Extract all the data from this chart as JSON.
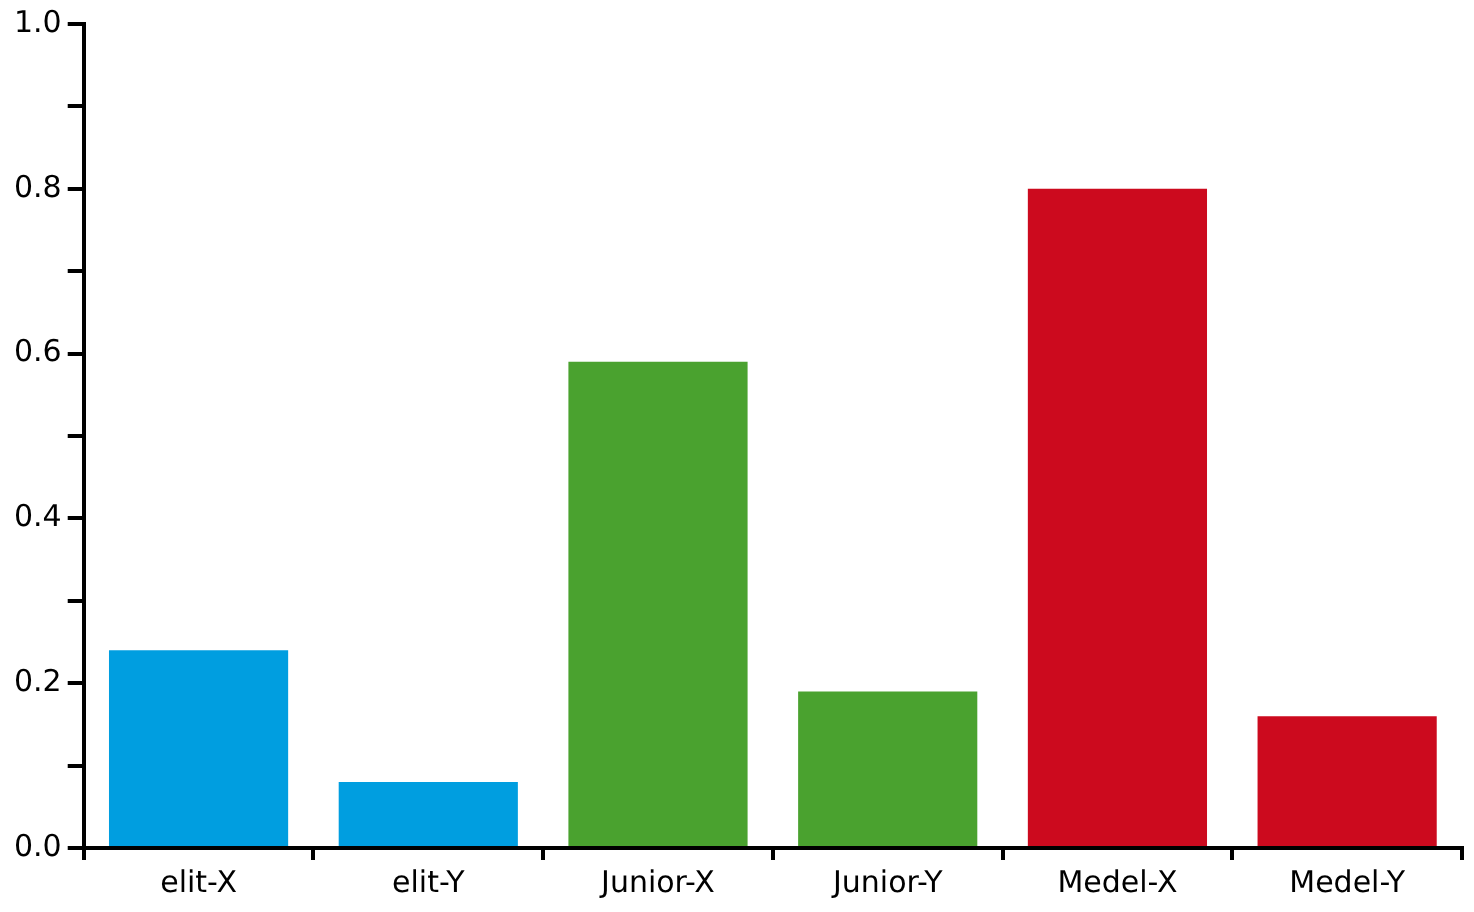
{
  "chart_data": {
    "type": "bar",
    "categories": [
      "elit-X",
      "elit-Y",
      "Junior-X",
      "Junior-Y",
      "Medel-X",
      "Medel-Y"
    ],
    "values": [
      0.24,
      0.08,
      0.59,
      0.19,
      0.8,
      0.16
    ],
    "colors": [
      "#009ee0",
      "#009ee0",
      "#4aa22f",
      "#4aa22f",
      "#cc0a1e",
      "#cc0a1e"
    ],
    "ylim": [
      0,
      1
    ],
    "yticks": [
      {
        "value": 0,
        "label": "0.0"
      },
      {
        "value": 0.1,
        "label": null
      },
      0.2,
      {
        "value": 0.3,
        "label": null
      },
      0.4,
      {
        "value": 0.5,
        "label": null
      },
      0.6,
      {
        "value": 0.7,
        "label": null
      },
      0.8,
      {
        "value": 0.9,
        "label": null
      },
      {
        "value": 1,
        "label": "1.0"
      }
    ],
    "grid": false,
    "legend": false
  }
}
